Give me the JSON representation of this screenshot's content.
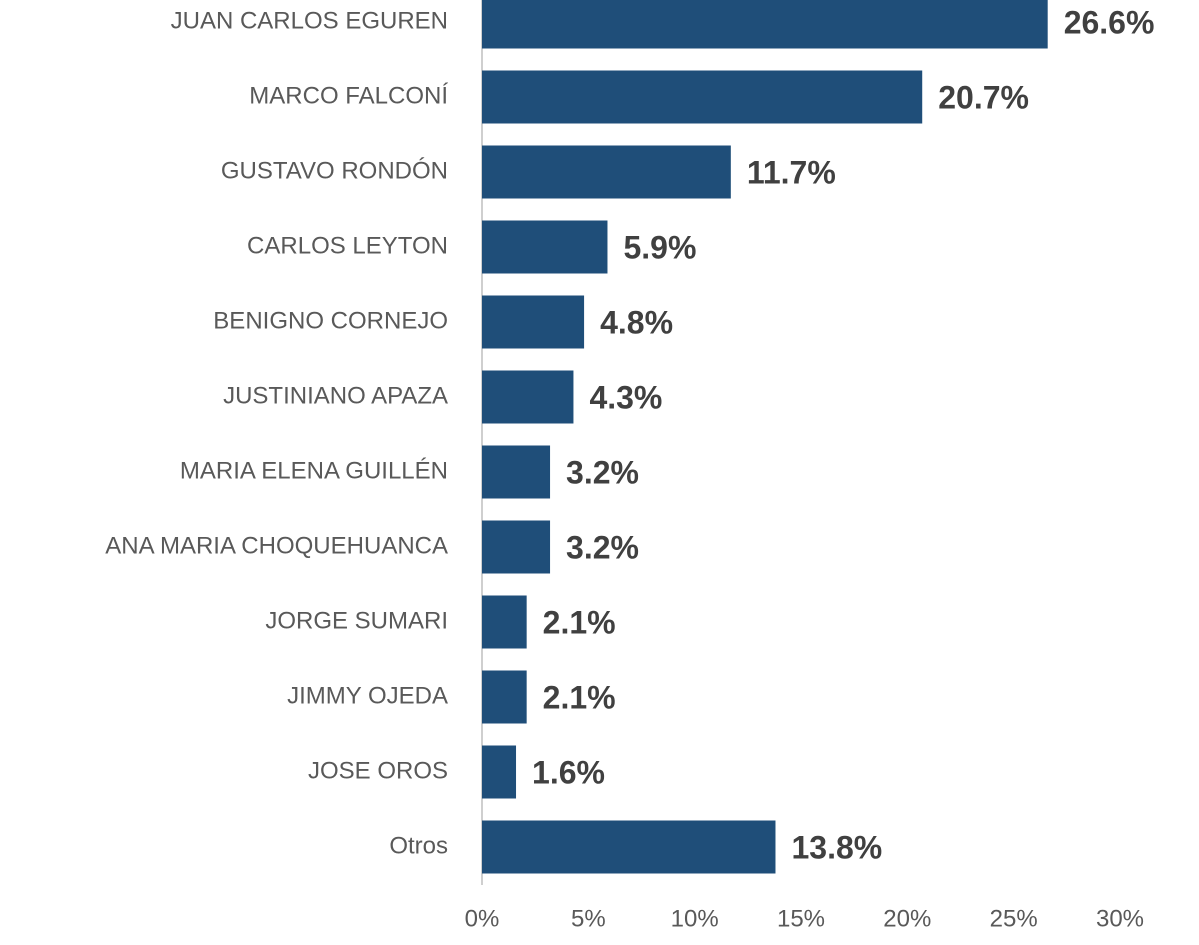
{
  "chart_data": {
    "type": "bar",
    "orientation": "horizontal",
    "categories": [
      "JUAN CARLOS EGUREN",
      "MARCO FALCONÍ",
      "GUSTAVO RONDÓN",
      "CARLOS LEYTON",
      "BENIGNO CORNEJO",
      "JUSTINIANO APAZA",
      "MARIA ELENA GUILLÉN",
      "ANA MARIA CHOQUEHUANCA",
      "JORGE SUMARI",
      "JIMMY OJEDA",
      "JOSE OROS",
      "Otros"
    ],
    "values": [
      26.6,
      20.7,
      11.7,
      5.9,
      4.8,
      4.3,
      3.2,
      3.2,
      2.1,
      2.1,
      1.6,
      13.8
    ],
    "value_labels": [
      "26.6%",
      "20.7%",
      "11.7%",
      "5.9%",
      "4.8%",
      "4.3%",
      "3.2%",
      "3.2%",
      "2.1%",
      "2.1%",
      "1.6%",
      "13.8%"
    ],
    "color": "#1f4e79",
    "xlim": [
      0,
      30
    ],
    "xticks": [
      {
        "value": 0,
        "label": "0%"
      },
      {
        "value": 5,
        "label": "5%"
      },
      {
        "value": 10,
        "label": "10%"
      },
      {
        "value": 15,
        "label": "15%"
      },
      {
        "value": 20,
        "label": "20%"
      },
      {
        "value": 25,
        "label": "25%"
      },
      {
        "value": 30,
        "label": "30%"
      }
    ],
    "grid": false
  }
}
